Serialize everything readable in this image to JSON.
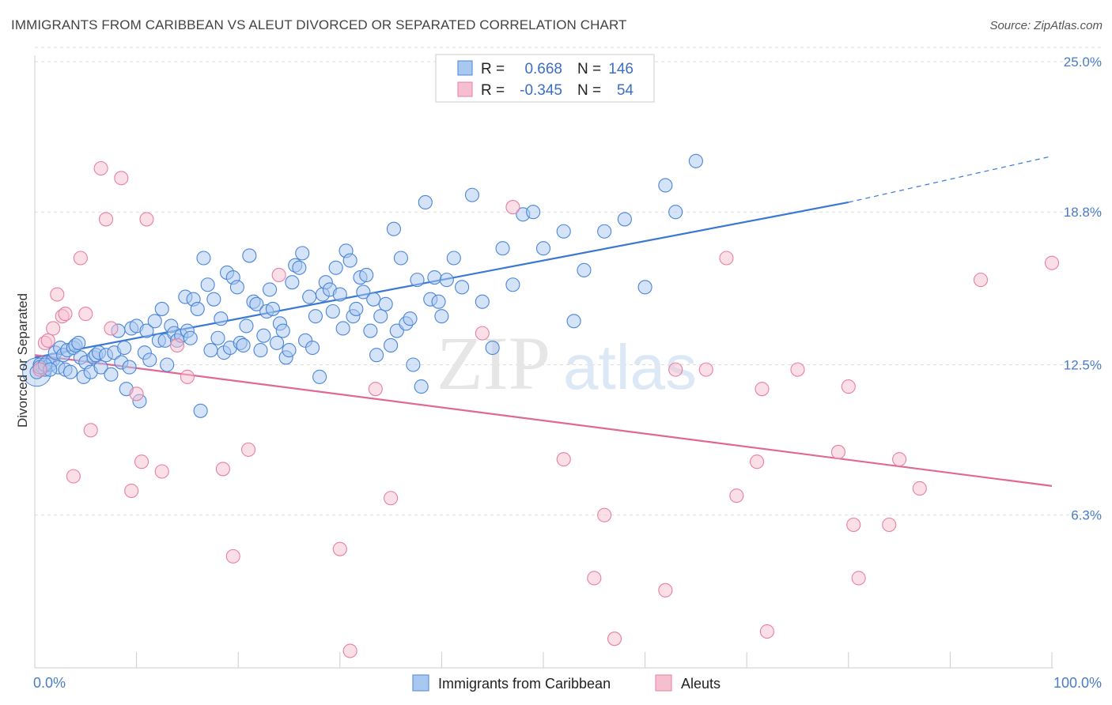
{
  "title": "IMMIGRANTS FROM CARIBBEAN VS ALEUT DIVORCED OR SEPARATED CORRELATION CHART",
  "source": "Source: ZipAtlas.com",
  "watermark": {
    "zip": "ZIP",
    "atlas": "atlas"
  },
  "colors": {
    "blue_fill": "#a9c8f0",
    "blue_stroke": "#4a86d8",
    "blue_line": "#3a78d4",
    "pink_fill": "#f6bfd0",
    "pink_stroke": "#e87fa3",
    "pink_line": "#e06894",
    "tick_color": "#4a7cc7",
    "grid": "#dddddd"
  },
  "legend": {
    "rows": [
      {
        "r_label": "R =",
        "r_value": "0.668",
        "n_label": "N =",
        "n_value": "146"
      },
      {
        "r_label": "R =",
        "r_value": "-0.345",
        "n_label": "N =",
        "n_value": "54"
      }
    ]
  },
  "bottom_legend": [
    "Immigrants from Caribbean",
    "Aleuts"
  ],
  "chart_data": {
    "type": "scatter",
    "xlabel": "",
    "ylabel": "Divorced or Separated",
    "xlim": [
      0,
      100
    ],
    "ylim": [
      0,
      25
    ],
    "x_tick_labels": [
      "0.0%",
      "100.0%"
    ],
    "y_ticks": [
      6.3,
      12.5,
      18.8,
      25.0
    ],
    "y_tick_labels": [
      "6.3%",
      "12.5%",
      "18.8%",
      "25.0%"
    ],
    "grid": "horizontal dashed",
    "legend_position": "top-center",
    "series": [
      {
        "name": "Immigrants from Caribbean",
        "color": "#4a86d8",
        "trend": {
          "x0": 0,
          "y0": 12.8,
          "x1": 80,
          "y1": 19.2,
          "dashed_to_x": 100,
          "dashed_to_y": 21.1
        },
        "points": [
          [
            0.2,
            12.2
          ],
          [
            0.5,
            12.5
          ],
          [
            0.8,
            12.4
          ],
          [
            1.0,
            12.3
          ],
          [
            1.2,
            12.6
          ],
          [
            1.5,
            12.5
          ],
          [
            1.8,
            12.7
          ],
          [
            2.0,
            13.0
          ],
          [
            2.3,
            12.4
          ],
          [
            2.5,
            13.2
          ],
          [
            2.8,
            12.9
          ],
          [
            3.0,
            12.3
          ],
          [
            3.2,
            13.1
          ],
          [
            3.5,
            12.2
          ],
          [
            3.8,
            13.2
          ],
          [
            4.0,
            13.3
          ],
          [
            4.3,
            13.4
          ],
          [
            4.5,
            12.8
          ],
          [
            4.8,
            12.0
          ],
          [
            5.0,
            12.6
          ],
          [
            5.5,
            12.2
          ],
          [
            5.8,
            12.8
          ],
          [
            6.0,
            12.9
          ],
          [
            6.3,
            13.0
          ],
          [
            6.5,
            12.4
          ],
          [
            7.0,
            12.9
          ],
          [
            7.5,
            12.1
          ],
          [
            7.8,
            13.0
          ],
          [
            8.2,
            13.9
          ],
          [
            8.5,
            12.6
          ],
          [
            8.8,
            13.2
          ],
          [
            9.0,
            11.5
          ],
          [
            9.3,
            12.4
          ],
          [
            9.5,
            14.0
          ],
          [
            10.0,
            14.1
          ],
          [
            10.3,
            11.0
          ],
          [
            10.8,
            13.0
          ],
          [
            11.0,
            13.9
          ],
          [
            11.3,
            12.7
          ],
          [
            11.8,
            14.3
          ],
          [
            12.2,
            13.5
          ],
          [
            12.5,
            14.8
          ],
          [
            12.8,
            13.5
          ],
          [
            13.0,
            12.5
          ],
          [
            13.4,
            14.1
          ],
          [
            13.7,
            13.8
          ],
          [
            14.0,
            13.5
          ],
          [
            14.4,
            13.7
          ],
          [
            14.8,
            15.3
          ],
          [
            15.0,
            13.9
          ],
          [
            15.3,
            13.6
          ],
          [
            15.6,
            15.2
          ],
          [
            16.0,
            14.8
          ],
          [
            16.3,
            10.6
          ],
          [
            16.6,
            16.9
          ],
          [
            17.0,
            15.8
          ],
          [
            17.3,
            13.1
          ],
          [
            17.6,
            15.2
          ],
          [
            18.0,
            13.6
          ],
          [
            18.3,
            14.4
          ],
          [
            18.6,
            13.0
          ],
          [
            18.9,
            16.3
          ],
          [
            19.2,
            13.2
          ],
          [
            19.5,
            16.1
          ],
          [
            19.9,
            15.7
          ],
          [
            20.2,
            13.4
          ],
          [
            20.5,
            13.3
          ],
          [
            20.8,
            14.1
          ],
          [
            21.1,
            17.0
          ],
          [
            21.5,
            15.1
          ],
          [
            21.8,
            15.0
          ],
          [
            22.2,
            13.1
          ],
          [
            22.5,
            13.7
          ],
          [
            22.8,
            14.7
          ],
          [
            23.1,
            15.6
          ],
          [
            23.4,
            14.8
          ],
          [
            23.8,
            13.4
          ],
          [
            24.1,
            14.2
          ],
          [
            24.4,
            13.9
          ],
          [
            24.7,
            12.8
          ],
          [
            25.0,
            13.1
          ],
          [
            25.3,
            15.9
          ],
          [
            25.6,
            16.6
          ],
          [
            26.0,
            16.5
          ],
          [
            26.3,
            17.1
          ],
          [
            26.6,
            13.5
          ],
          [
            27.0,
            15.3
          ],
          [
            27.3,
            13.2
          ],
          [
            27.6,
            14.5
          ],
          [
            28.0,
            12.0
          ],
          [
            28.3,
            15.4
          ],
          [
            28.6,
            15.9
          ],
          [
            29.0,
            15.6
          ],
          [
            29.3,
            14.7
          ],
          [
            29.6,
            16.5
          ],
          [
            30.0,
            15.4
          ],
          [
            30.3,
            14.0
          ],
          [
            30.6,
            17.2
          ],
          [
            31.0,
            16.8
          ],
          [
            31.3,
            14.5
          ],
          [
            31.6,
            14.8
          ],
          [
            32.0,
            16.1
          ],
          [
            32.3,
            15.5
          ],
          [
            32.6,
            16.2
          ],
          [
            33.0,
            13.9
          ],
          [
            33.3,
            15.2
          ],
          [
            33.6,
            12.9
          ],
          [
            34.0,
            14.5
          ],
          [
            34.5,
            15.0
          ],
          [
            35.0,
            13.3
          ],
          [
            35.3,
            18.1
          ],
          [
            35.6,
            13.9
          ],
          [
            36.0,
            16.9
          ],
          [
            36.5,
            14.2
          ],
          [
            36.9,
            14.4
          ],
          [
            37.2,
            12.5
          ],
          [
            37.6,
            16.0
          ],
          [
            38.0,
            11.6
          ],
          [
            38.4,
            19.2
          ],
          [
            38.9,
            15.2
          ],
          [
            39.3,
            16.1
          ],
          [
            39.7,
            15.1
          ],
          [
            40.0,
            14.5
          ],
          [
            40.5,
            16.0
          ],
          [
            41.2,
            16.9
          ],
          [
            42.0,
            15.7
          ],
          [
            43.0,
            19.5
          ],
          [
            44.0,
            15.1
          ],
          [
            45.0,
            13.2
          ],
          [
            46.0,
            17.3
          ],
          [
            47.0,
            15.8
          ],
          [
            48.0,
            18.7
          ],
          [
            49.0,
            18.8
          ],
          [
            50.0,
            17.3
          ],
          [
            52.0,
            18.0
          ],
          [
            53.0,
            14.3
          ],
          [
            54.0,
            16.4
          ],
          [
            56.0,
            18.0
          ],
          [
            58.0,
            18.5
          ],
          [
            60.0,
            15.7
          ],
          [
            62.0,
            19.9
          ],
          [
            65.0,
            20.9
          ],
          [
            63.0,
            18.8
          ],
          [
            0.5,
            12.4
          ],
          [
            1.0,
            12.5
          ],
          [
            1.5,
            12.3
          ]
        ]
      },
      {
        "name": "Aleuts",
        "color": "#e87fa3",
        "trend": {
          "x0": 0,
          "y0": 12.9,
          "x1": 100,
          "y1": 7.5
        },
        "points": [
          [
            0.5,
            12.3
          ],
          [
            1.0,
            13.4
          ],
          [
            1.3,
            13.5
          ],
          [
            1.8,
            14.0
          ],
          [
            2.2,
            15.4
          ],
          [
            2.7,
            14.5
          ],
          [
            3.0,
            14.6
          ],
          [
            3.8,
            7.9
          ],
          [
            4.5,
            16.9
          ],
          [
            5.0,
            14.6
          ],
          [
            5.5,
            9.8
          ],
          [
            6.5,
            20.6
          ],
          [
            7.0,
            18.5
          ],
          [
            7.5,
            14.0
          ],
          [
            8.5,
            20.2
          ],
          [
            9.5,
            7.3
          ],
          [
            10.0,
            11.3
          ],
          [
            10.5,
            8.5
          ],
          [
            11.0,
            18.5
          ],
          [
            12.5,
            8.1
          ],
          [
            14.0,
            13.3
          ],
          [
            15.0,
            12.0
          ],
          [
            18.5,
            8.2
          ],
          [
            19.5,
            4.6
          ],
          [
            21.0,
            9.0
          ],
          [
            24.0,
            16.2
          ],
          [
            30.0,
            4.9
          ],
          [
            31.0,
            0.7
          ],
          [
            33.5,
            11.5
          ],
          [
            35.0,
            7.0
          ],
          [
            44.0,
            13.8
          ],
          [
            47.0,
            19.0
          ],
          [
            52.0,
            8.6
          ],
          [
            55.0,
            3.7
          ],
          [
            56.0,
            6.3
          ],
          [
            57.0,
            1.2
          ],
          [
            62.0,
            3.2
          ],
          [
            63.0,
            12.3
          ],
          [
            68.0,
            16.9
          ],
          [
            69.0,
            7.1
          ],
          [
            71.0,
            8.5
          ],
          [
            71.5,
            11.5
          ],
          [
            72.0,
            1.5
          ],
          [
            75.0,
            12.3
          ],
          [
            79.0,
            8.9
          ],
          [
            80.0,
            11.6
          ],
          [
            80.5,
            5.9
          ],
          [
            81.0,
            3.7
          ],
          [
            84.0,
            5.9
          ],
          [
            85.0,
            8.6
          ],
          [
            87.0,
            7.4
          ],
          [
            93.0,
            16.0
          ],
          [
            100.0,
            16.7
          ],
          [
            66.0,
            12.3
          ]
        ]
      }
    ]
  }
}
